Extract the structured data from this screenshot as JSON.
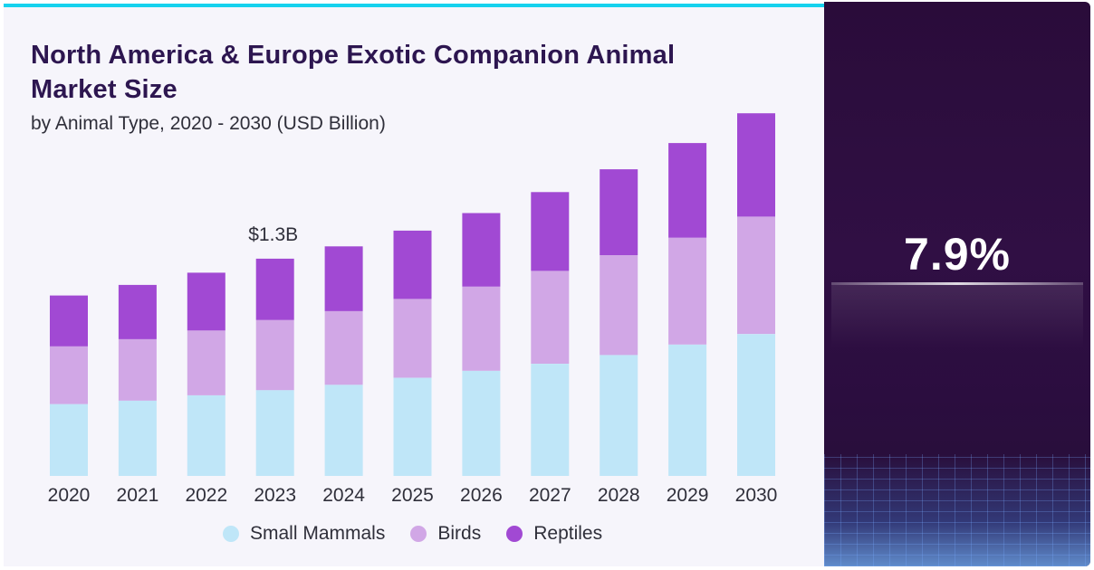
{
  "header": {
    "title": "North America & Europe Exotic Companion Animal Market Size",
    "subtitle": "by Animal Type, 2020 - 2030 (USD Billion)"
  },
  "cagr": {
    "value": "7.9%"
  },
  "colors": {
    "small_mammals": "#bfe6f8",
    "birds": "#d1a7e6",
    "reptiles": "#a149d3",
    "right_panel": "#2a0c3a",
    "accent": "#16d2ee"
  },
  "chart_data": {
    "type": "bar",
    "stacked": true,
    "categories": [
      "2020",
      "2021",
      "2022",
      "2023",
      "2024",
      "2025",
      "2026",
      "2027",
      "2028",
      "2029",
      "2030"
    ],
    "series": [
      {
        "name": "Small Mammals",
        "values": [
          0.41,
          0.43,
          0.46,
          0.49,
          0.52,
          0.56,
          0.6,
          0.64,
          0.69,
          0.75,
          0.81
        ]
      },
      {
        "name": "Birds",
        "values": [
          0.33,
          0.35,
          0.37,
          0.4,
          0.42,
          0.45,
          0.48,
          0.53,
          0.57,
          0.61,
          0.67
        ]
      },
      {
        "name": "Reptiles",
        "values": [
          0.29,
          0.31,
          0.33,
          0.35,
          0.37,
          0.39,
          0.42,
          0.45,
          0.49,
          0.54,
          0.59
        ]
      }
    ],
    "annotations": [
      {
        "category": "2023",
        "text": "$1.3B"
      }
    ],
    "ylim": [
      0,
      2.2
    ],
    "grid": false,
    "legend": "bottom"
  }
}
